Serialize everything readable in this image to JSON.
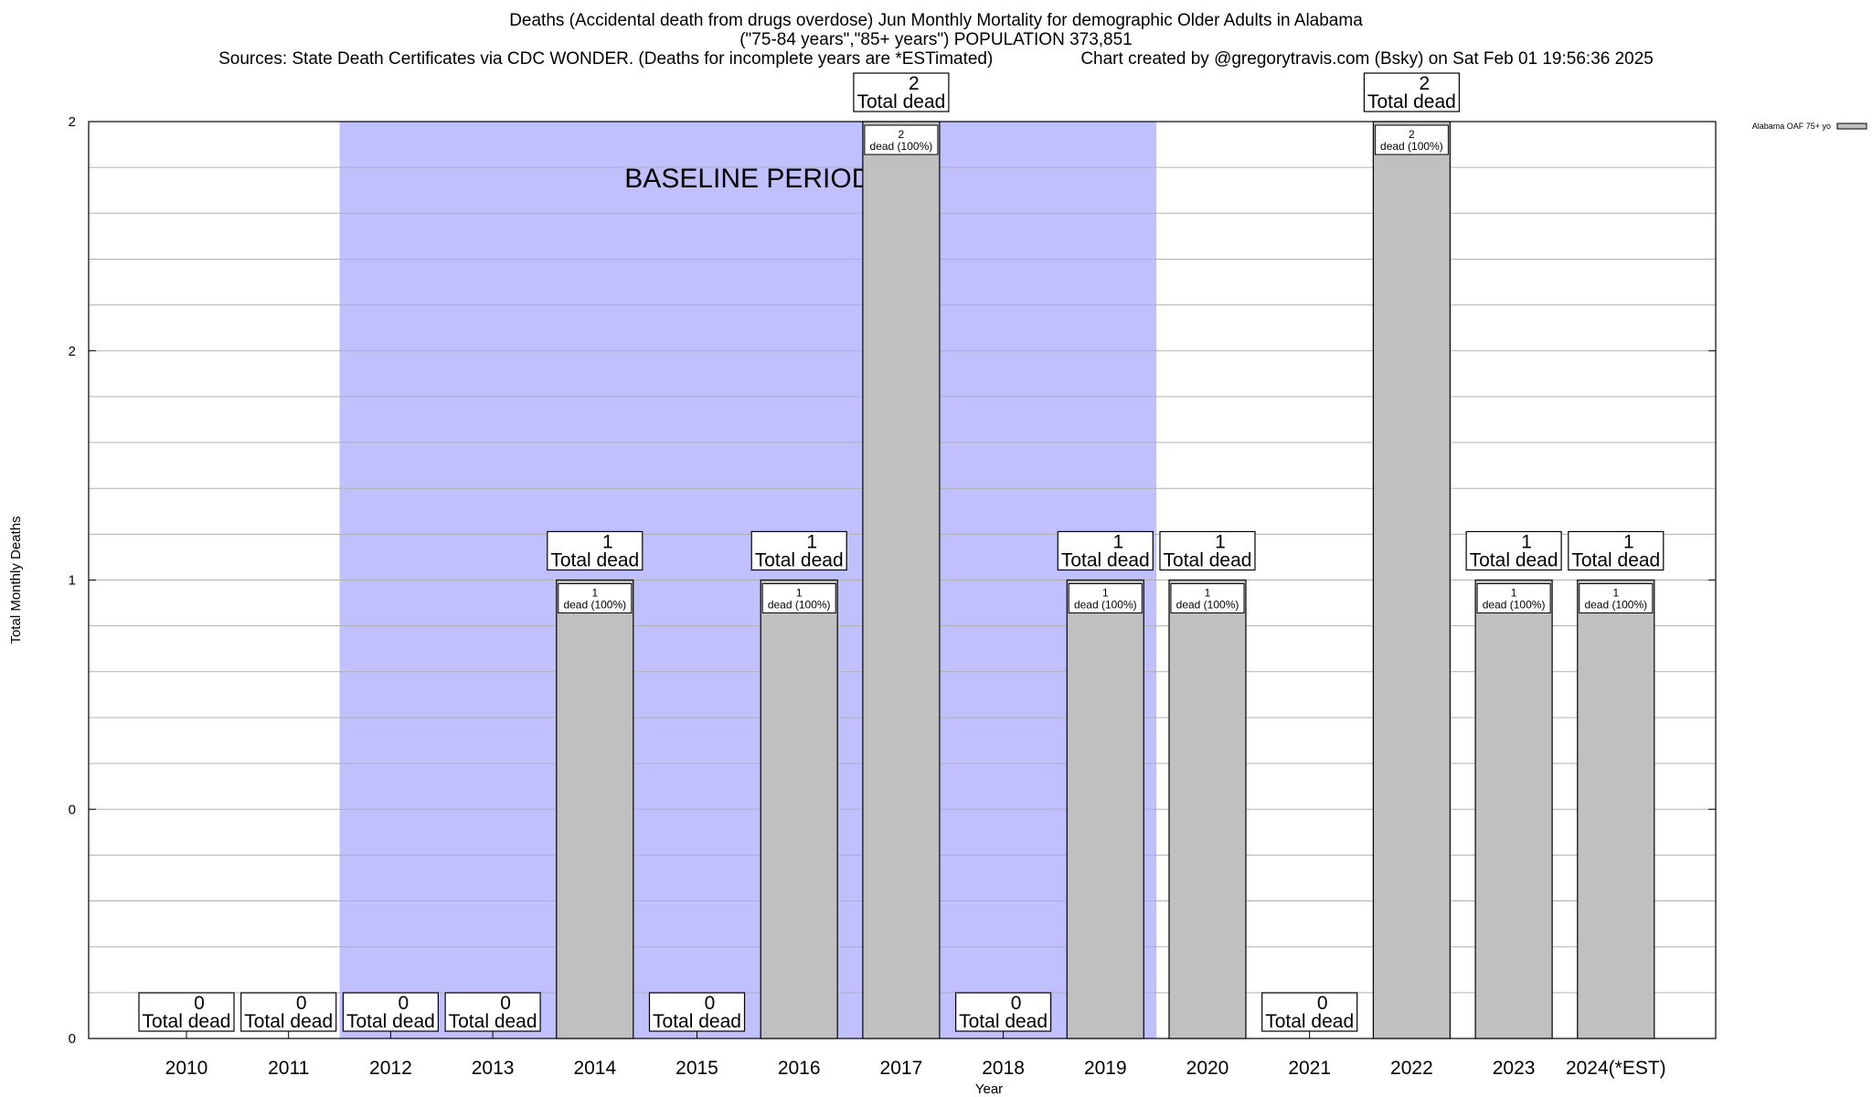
{
  "chart_data": {
    "type": "bar",
    "title_line1": "Deaths (Accidental death from drugs overdose) Jun Monthly Mortality for demographic Older Adults in Alabama",
    "title_line2": "(\"75-84 years\",\"85+ years\") POPULATION 373,851",
    "sources": "Sources: State Death Certificates via CDC WONDER. (Deaths for incomplete years are *ESTimated)",
    "credit": "Chart created by @gregorytravis.com (Bsky) on Sat Feb 01 19:56:36 2025",
    "xlabel": "Year",
    "ylabel": "Total Monthly Deaths",
    "ylim": [
      0,
      2
    ],
    "y_tick_labels": [
      "0",
      "0",
      "1",
      "2",
      "2"
    ],
    "grid": true,
    "legend_position": "top-right",
    "categories": [
      "2010",
      "2011",
      "2012",
      "2013",
      "2014",
      "2015",
      "2016",
      "2017",
      "2018",
      "2019",
      "2020",
      "2021",
      "2022",
      "2023",
      "2024(*EST)"
    ],
    "series": [
      {
        "name": "Alabama OAF 75+ yo",
        "color": "#c0c0c0",
        "values": [
          0,
          0,
          0,
          0,
          1,
          0,
          1,
          2,
          0,
          1,
          1,
          0,
          2,
          1,
          1
        ]
      }
    ],
    "total_label_suffix": "Total dead",
    "inner_label_suffix": "dead (100%)",
    "baseline": {
      "label": "BASELINE PERIOD",
      "start_category": "2012",
      "end_category": "2019",
      "color": "#c0c0ff"
    }
  }
}
